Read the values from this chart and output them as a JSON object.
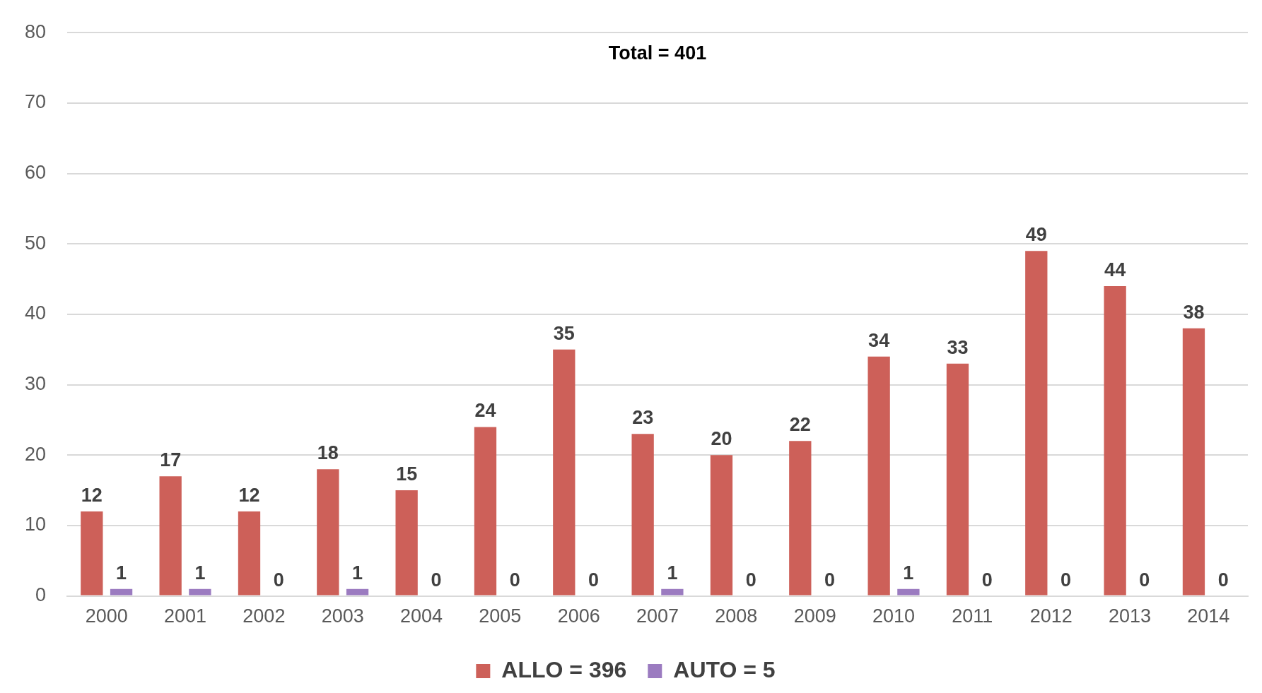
{
  "chart_data": {
    "type": "bar",
    "title": "Total = 401",
    "categories": [
      "2000",
      "2001",
      "2002",
      "2003",
      "2004",
      "2005",
      "2006",
      "2007",
      "2008",
      "2009",
      "2010",
      "2011",
      "2012",
      "2013",
      "2014"
    ],
    "series": [
      {
        "name": "ALLO = 396",
        "color": "#cd6059",
        "values": [
          12,
          17,
          12,
          18,
          15,
          24,
          35,
          23,
          20,
          22,
          34,
          33,
          49,
          44,
          38
        ]
      },
      {
        "name": "AUTO = 5",
        "color": "#9b7bc0",
        "values": [
          1,
          1,
          0,
          1,
          0,
          0,
          0,
          1,
          0,
          0,
          1,
          0,
          0,
          0,
          0
        ]
      }
    ],
    "ylim": [
      0,
      80
    ],
    "yticks": [
      0,
      10,
      20,
      30,
      40,
      50,
      60,
      70,
      80
    ],
    "grid": "y",
    "legend": "bottom",
    "data_labels": true
  }
}
